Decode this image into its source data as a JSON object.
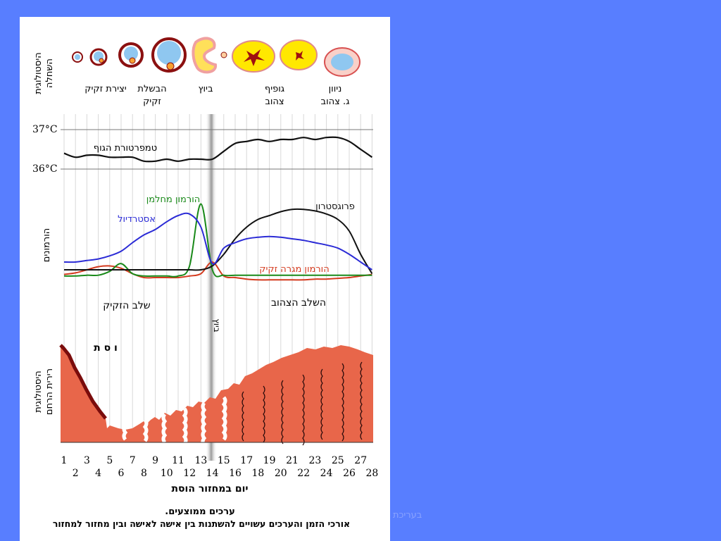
{
  "histology_ovary_label": [
    "היסטולוגית",
    "השחלה"
  ],
  "ovary_stages": {
    "sperm_formation": "יצירת זקיק",
    "follicle_maturation": [
      "הבשלת",
      "זקיק"
    ],
    "ovulation": "ביוץ",
    "corpus_luteum": [
      "גופיף",
      "צהוב"
    ],
    "corpus_degeneration": [
      "ניוון",
      "ג. צהוב"
    ]
  },
  "temperature": {
    "high": "37°C",
    "low": "36°C",
    "label": "טמפרטורת הגוף"
  },
  "hormones_axis_label": "הורמונים",
  "hormone_labels": {
    "lh": "הורמון מחלמן",
    "estradiol": "אסטרדיול",
    "progesterone": "פרוגסטרון",
    "fsh": "הורמון מגרה זקיק"
  },
  "phases": {
    "follicular": "שלב הזקיק",
    "luteal": "השלב הצהוב",
    "ovulation_vertical": "ביוץ"
  },
  "endometrium_label": [
    "היסטולוגית",
    "רירית הרחם"
  ],
  "menses_label": "ו ס ת",
  "x_axis": {
    "odd_days": [
      "1",
      "3",
      "5",
      "7",
      "9",
      "11",
      "13",
      "15",
      "17",
      "19",
      "21",
      "23",
      "25",
      "27"
    ],
    "even_days": [
      "2",
      "4",
      "6",
      "8",
      "10",
      "12",
      "14",
      "16",
      "18",
      "20",
      "22",
      "24",
      "26",
      "28"
    ],
    "title": "יום במחזור הוסת"
  },
  "notes": {
    "line1": "ערכים ממוצעים.",
    "line2": "אורכי הזמן והערכים עשויים להשתנות בין אישה לאישה ובין מחזור למחזור"
  },
  "watermark": "בעריכת",
  "colors": {
    "background": "#587eff",
    "temperature": "#111111",
    "estradiol": "#2b2bd6",
    "lh": "#1a8a1a",
    "progesterone": "#111111",
    "fsh": "#d43a1e",
    "endometrium": "#e8664a"
  },
  "chart_data": {
    "type": "line",
    "x": [
      1,
      2,
      3,
      4,
      5,
      6,
      7,
      8,
      9,
      10,
      11,
      12,
      13,
      14,
      15,
      16,
      17,
      18,
      19,
      20,
      21,
      22,
      23,
      24,
      25,
      26,
      27,
      28
    ],
    "xlabel": "יום במחזור הוסת",
    "series": [
      {
        "name": "טמפרטורת הגוף",
        "values": [
          36.4,
          36.3,
          36.35,
          36.35,
          36.3,
          36.3,
          36.3,
          36.2,
          36.2,
          36.25,
          36.2,
          36.25,
          36.25,
          36.25,
          36.45,
          36.65,
          36.7,
          36.75,
          36.7,
          36.75,
          36.75,
          36.8,
          36.75,
          36.8,
          36.8,
          36.7,
          36.5,
          36.3
        ]
      },
      {
        "name": "אסטרדיול",
        "values": [
          0.2,
          0.2,
          0.22,
          0.24,
          0.28,
          0.34,
          0.45,
          0.55,
          0.62,
          0.72,
          0.8,
          0.82,
          0.65,
          0.18,
          0.38,
          0.45,
          0.5,
          0.52,
          0.53,
          0.52,
          0.5,
          0.48,
          0.45,
          0.42,
          0.38,
          0.3,
          0.2,
          0.1
        ]
      },
      {
        "name": "הורמון מחלמן",
        "values": [
          0.02,
          0.02,
          0.03,
          0.03,
          0.08,
          0.18,
          0.05,
          0.02,
          0.02,
          0.02,
          0.02,
          0.15,
          0.95,
          0.1,
          0.03,
          0.03,
          0.03,
          0.03,
          0.03,
          0.03,
          0.03,
          0.03,
          0.03,
          0.03,
          0.03,
          0.03,
          0.03,
          0.03
        ]
      },
      {
        "name": "פרוגסטרון",
        "values": [
          0.1,
          0.1,
          0.1,
          0.1,
          0.1,
          0.1,
          0.1,
          0.1,
          0.1,
          0.1,
          0.1,
          0.1,
          0.1,
          0.15,
          0.3,
          0.5,
          0.65,
          0.75,
          0.8,
          0.85,
          0.88,
          0.88,
          0.86,
          0.82,
          0.75,
          0.6,
          0.3,
          0.05
        ]
      },
      {
        "name": "הורמון מגרה זקיק",
        "values": [
          0.04,
          0.06,
          0.1,
          0.14,
          0.15,
          0.12,
          0.05,
          0.0,
          0.0,
          0.0,
          0.0,
          0.02,
          0.05,
          0.2,
          0.02,
          0.0,
          -0.02,
          -0.03,
          -0.03,
          -0.03,
          -0.03,
          -0.03,
          -0.02,
          -0.02,
          -0.01,
          0.0,
          0.02,
          0.04
        ]
      }
    ]
  }
}
